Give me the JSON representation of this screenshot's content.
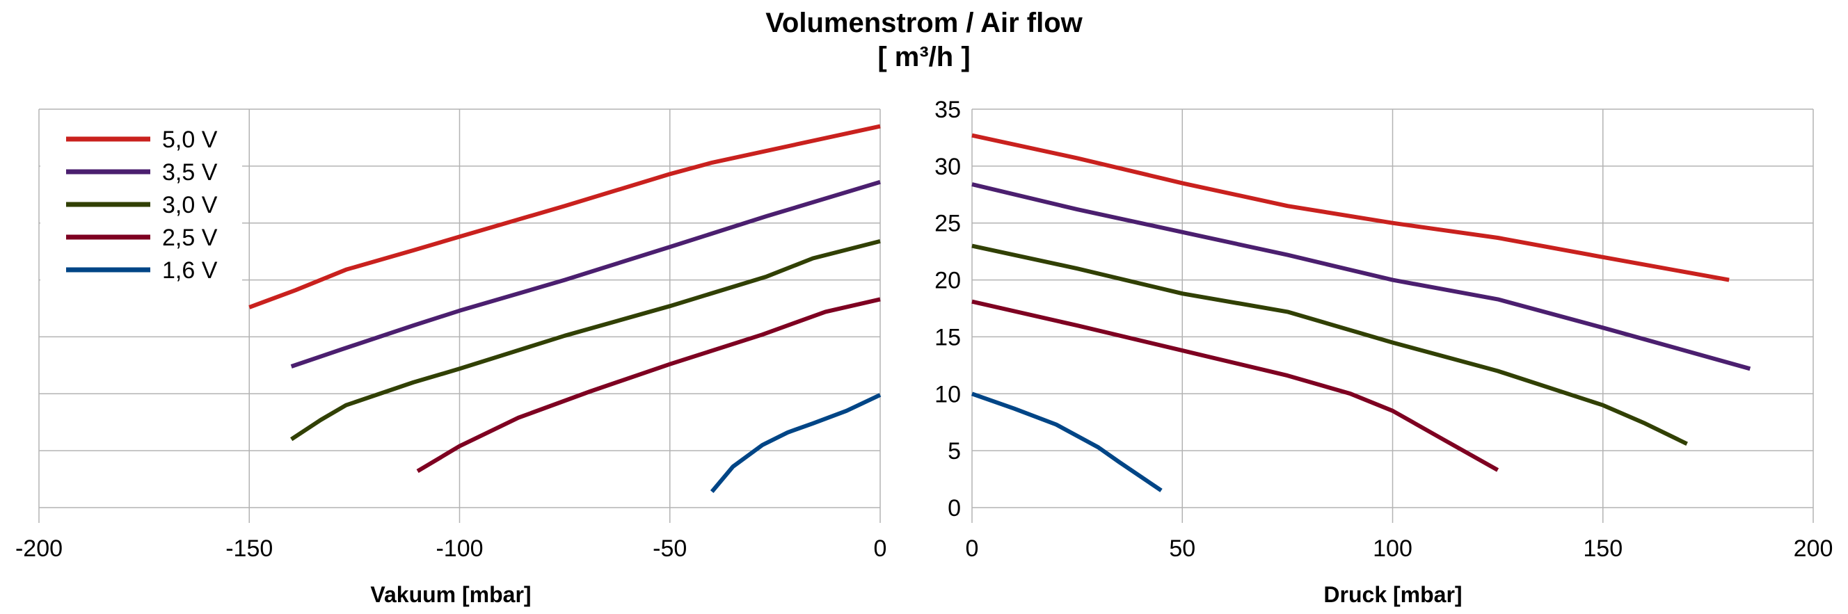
{
  "chart_data": {
    "type": "line",
    "title": "Volumenstrom / Air flow",
    "subtitle": "[ m³/h ]",
    "ylim": [
      0,
      35
    ],
    "yticks": [
      "0",
      "5",
      "10",
      "15",
      "20",
      "25",
      "30",
      "35"
    ],
    "grid": true,
    "legend_position": "top-left",
    "panels": [
      {
        "id": "vacuum",
        "xlabel": "Vakuum [mbar]",
        "xlim": [
          -200,
          0
        ],
        "xticks": [
          "-200",
          "-150",
          "-100",
          "-50",
          "0"
        ],
        "series": [
          {
            "name": "5,0 V",
            "color": "#c9211e",
            "x": [
              -150,
              -139,
              -127,
              -111,
              -100,
              -75,
              -50,
              -40,
              0
            ],
            "y": [
              17.6,
              19.1,
              20.9,
              22.6,
              23.8,
              26.5,
              29.3,
              30.3,
              33.5
            ]
          },
          {
            "name": "3,5 V",
            "color": "#4b1f6f",
            "x": [
              -140,
              -128,
              -111,
              -100,
              -75,
              -50,
              -27,
              0
            ],
            "y": [
              12.4,
              13.9,
              16.0,
              17.3,
              20.0,
              22.9,
              25.6,
              28.6
            ]
          },
          {
            "name": "3,0 V",
            "color": "#314004",
            "x": [
              -140,
              -133,
              -127,
              -111,
              -100,
              -75,
              -50,
              -27,
              -16,
              0
            ],
            "y": [
              6.0,
              7.7,
              9.0,
              11.0,
              12.2,
              15.1,
              17.7,
              20.3,
              21.9,
              23.4
            ]
          },
          {
            "name": "2,5 V",
            "color": "#7e0021",
            "x": [
              -110,
              -100,
              -86,
              -69,
              -50,
              -28,
              -13,
              0
            ],
            "y": [
              3.2,
              5.4,
              7.9,
              10.2,
              12.6,
              15.2,
              17.2,
              18.3
            ]
          },
          {
            "name": "1,6 V",
            "color": "#004586",
            "x": [
              -40,
              -35,
              -28,
              -22,
              -16,
              -8,
              0
            ],
            "y": [
              1.4,
              3.6,
              5.5,
              6.6,
              7.4,
              8.5,
              9.9
            ]
          }
        ]
      },
      {
        "id": "pressure",
        "xlabel": "Druck [mbar]",
        "xlim": [
          0,
          200
        ],
        "xticks": [
          "0",
          "50",
          "100",
          "150",
          "200"
        ],
        "series": [
          {
            "name": "5,0 V",
            "color": "#c9211e",
            "x": [
              0,
              25,
              50,
              75,
              100,
              125,
              150,
              180
            ],
            "y": [
              32.7,
              30.7,
              28.5,
              26.5,
              25.0,
              23.7,
              22.0,
              20.0
            ]
          },
          {
            "name": "3,5 V",
            "color": "#4b1f6f",
            "x": [
              0,
              25,
              50,
              75,
              100,
              125,
              150,
              185
            ],
            "y": [
              28.4,
              26.2,
              24.2,
              22.2,
              20.0,
              18.3,
              15.8,
              12.2
            ]
          },
          {
            "name": "3,0 V",
            "color": "#314004",
            "x": [
              0,
              25,
              50,
              75,
              100,
              125,
              150,
              160,
              170
            ],
            "y": [
              23.0,
              21.0,
              18.8,
              17.2,
              14.5,
              12.0,
              9.0,
              7.4,
              5.6
            ]
          },
          {
            "name": "2,5 V",
            "color": "#7e0021",
            "x": [
              0,
              25,
              50,
              75,
              90,
              100,
              112,
              125
            ],
            "y": [
              18.1,
              16.0,
              13.8,
              11.6,
              10.0,
              8.5,
              6.0,
              3.3
            ]
          },
          {
            "name": "1,6 V",
            "color": "#004586",
            "x": [
              0,
              10,
              20,
              30,
              35,
              45
            ],
            "y": [
              10.0,
              8.7,
              7.3,
              5.3,
              4.0,
              1.5
            ]
          }
        ]
      }
    ]
  }
}
